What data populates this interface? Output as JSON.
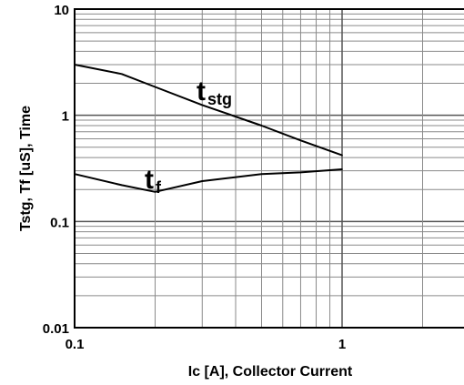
{
  "chart_data": {
    "type": "line",
    "title": "",
    "xlabel": "Ic [A], Collector Current",
    "ylabel": "Tstg, Tf [uS], Time",
    "x_scale": "log",
    "y_scale": "log",
    "xlim": [
      0.1,
      3
    ],
    "ylim": [
      0.01,
      10
    ],
    "grid": true,
    "x_tick_labels": [
      "0.1",
      "1"
    ],
    "y_tick_labels": [
      "10",
      "1",
      "0.1",
      "0.01"
    ],
    "series": [
      {
        "name": "tstg",
        "label_main": "t",
        "label_sub": "stg",
        "x": [
          0.1,
          0.15,
          0.2,
          0.3,
          0.5,
          0.7,
          1.0
        ],
        "y": [
          3.0,
          2.45,
          1.85,
          1.25,
          0.8,
          0.58,
          0.42
        ]
      },
      {
        "name": "tf",
        "label_main": "t",
        "label_sub": "f",
        "x": [
          0.1,
          0.15,
          0.2,
          0.3,
          0.5,
          0.7,
          1.0
        ],
        "y": [
          0.28,
          0.22,
          0.19,
          0.24,
          0.28,
          0.29,
          0.31
        ]
      }
    ]
  }
}
